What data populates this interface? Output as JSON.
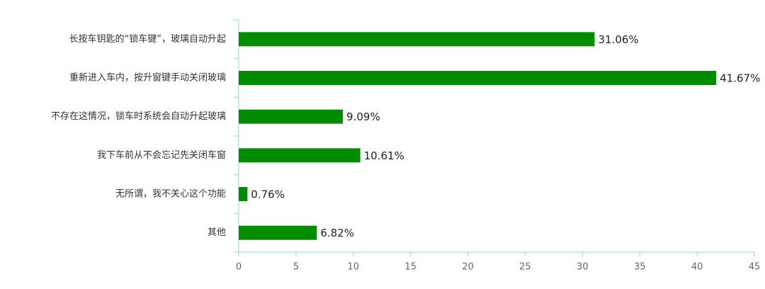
{
  "chart_data": {
    "type": "bar",
    "orientation": "horizontal",
    "categories": [
      "长按车钥匙的“锁车键”，玻璃自动升起",
      "重新进入车内，按升窗键手动关闭玻璃",
      "不存在这情况，锁车时系统会自动升起玻璃",
      "我下车前从不会忘记先关闭车窗",
      "无所谓，我不关心这个功能",
      "其他"
    ],
    "values": [
      31.06,
      41.67,
      9.09,
      10.61,
      0.76,
      6.82
    ],
    "value_labels": [
      "31.06%",
      "41.67%",
      "9.09%",
      "10.61%",
      "0.76%",
      "6.82%"
    ],
    "color": "#008b00",
    "xlim": [
      0,
      45
    ],
    "xticks": [
      0,
      5,
      10,
      15,
      20,
      25,
      30,
      35,
      40,
      45
    ],
    "grid": false
  }
}
